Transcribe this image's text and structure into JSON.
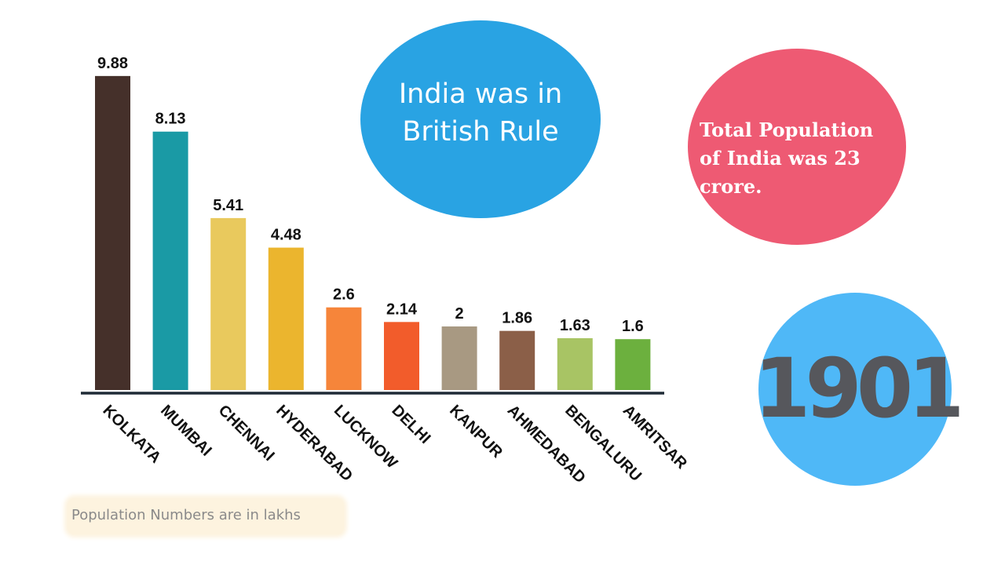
{
  "chart_data": {
    "type": "bar",
    "categories": [
      "KOLKATA",
      "MUMBAI",
      "CHENNAI",
      "HYDERABAD",
      "LUCKNOW",
      "DELHI",
      "KANPUR",
      "AHMEDABAD",
      "BENGALURU",
      "AMRITSAR"
    ],
    "values": [
      9.88,
      8.13,
      5.41,
      4.48,
      2.6,
      2.14,
      2,
      1.86,
      1.63,
      1.6
    ],
    "value_labels": [
      "9.88",
      "8.13",
      "5.41",
      "4.48",
      "2.6",
      "2.14",
      "2",
      "1.86",
      "1.63",
      "1.6"
    ],
    "bar_colors": [
      "#45302a",
      "#1a9aa5",
      "#e9c95d",
      "#ebb52e",
      "#f6853a",
      "#f25c2b",
      "#a89982",
      "#8b5f48",
      "#a8c464",
      "#6cb03e"
    ],
    "ylim": [
      0,
      10
    ],
    "grid": false,
    "axis_color": "#1e2a36",
    "label_color": "#111111"
  },
  "bubbles": {
    "british_rule": {
      "text": "India was in\nBritish Rule",
      "color": "#29a3e3"
    },
    "population": {
      "text": "Total Population\nof India was 23\ncrore.",
      "color": "#ee5a73"
    },
    "year": {
      "text": "1901",
      "color": "#4fb8f7",
      "text_color": "#56575c"
    }
  },
  "note": {
    "text": "Population Numbers are in lakhs",
    "background": "#fdf3df"
  }
}
